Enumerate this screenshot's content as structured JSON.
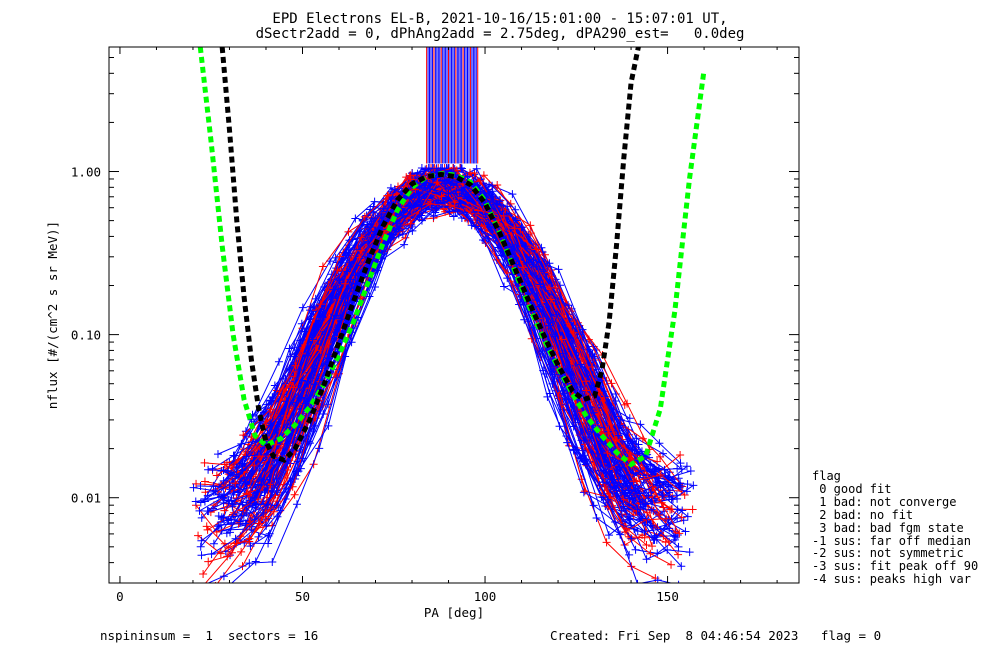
{
  "title_line1": "EPD Electrons EL-B, 2021-10-16/15:01:00 - 15:07:01 UT,",
  "title_line2": "dSectr2add = 0, dPhAng2add = 2.75deg, dPA290_est=   0.0deg",
  "footer_left": "nspininsum =  1  sectors = 16",
  "footer_right": "Created: Fri Sep  8 04:46:54 2023   flag = 0",
  "legend": {
    "title": "flag",
    "items": [
      " 0 good fit",
      " 1 bad: not converge",
      " 2 bad: no fit",
      " 3 bad: bad fgm state",
      "-1 sus: far off median",
      "-2 sus: not symmetric",
      "-3 sus: fit peak off 90",
      "-4 sus: peaks high var"
    ]
  },
  "chart_data": {
    "type": "line",
    "xlabel": "PA [deg]",
    "ylabel": "nflux [#/(cm^2 s sr MeV)]",
    "xlim": [
      -3,
      186
    ],
    "ylim": [
      0.003,
      5.8
    ],
    "yscale": "log",
    "xticks": [
      0,
      50,
      100,
      150
    ],
    "yticks": [
      {
        "value": 0.01,
        "label": "0.01"
      },
      {
        "value": 0.1,
        "label": "0.10"
      },
      {
        "value": 1,
        "label": "1.00"
      }
    ],
    "colors": {
      "red": "#ff0000",
      "blue": "#0000ff",
      "green": "#00ff00",
      "black": "#000000"
    },
    "series": [
      {
        "color": "green",
        "style": "dashed-thick",
        "x": [
          22,
          25,
          28,
          31,
          34,
          37,
          40,
          44,
          48,
          52,
          56,
          60,
          64,
          68,
          72,
          76,
          80,
          84,
          88,
          92,
          96,
          100,
          104,
          108,
          112,
          116,
          120,
          124,
          128,
          132,
          136,
          140,
          144,
          148,
          152,
          156,
          160
        ],
        "y": [
          5.8,
          1.5,
          0.35,
          0.1,
          0.04,
          0.024,
          0.021,
          0.023,
          0.028,
          0.036,
          0.05,
          0.075,
          0.12,
          0.21,
          0.36,
          0.58,
          0.8,
          0.93,
          0.97,
          0.95,
          0.86,
          0.66,
          0.42,
          0.25,
          0.15,
          0.095,
          0.063,
          0.043,
          0.031,
          0.024,
          0.019,
          0.016,
          0.018,
          0.035,
          0.14,
          0.9,
          4.2
        ]
      },
      {
        "color": "black",
        "style": "dashed-thick",
        "x": [
          28,
          30,
          32,
          34,
          36,
          38,
          40,
          42,
          45,
          48,
          52,
          56,
          60,
          64,
          68,
          72,
          76,
          80,
          84,
          88,
          92,
          96,
          100,
          104,
          108,
          112,
          116,
          120,
          124,
          127,
          130,
          132,
          134,
          136,
          138,
          140,
          142
        ],
        "y": [
          5.8,
          1.8,
          0.5,
          0.17,
          0.07,
          0.035,
          0.022,
          0.018,
          0.017,
          0.02,
          0.03,
          0.05,
          0.09,
          0.16,
          0.28,
          0.46,
          0.67,
          0.84,
          0.93,
          0.96,
          0.93,
          0.83,
          0.64,
          0.42,
          0.26,
          0.16,
          0.1,
          0.065,
          0.045,
          0.04,
          0.042,
          0.06,
          0.12,
          0.35,
          1.2,
          3.5,
          5.8
        ]
      }
    ]
  }
}
